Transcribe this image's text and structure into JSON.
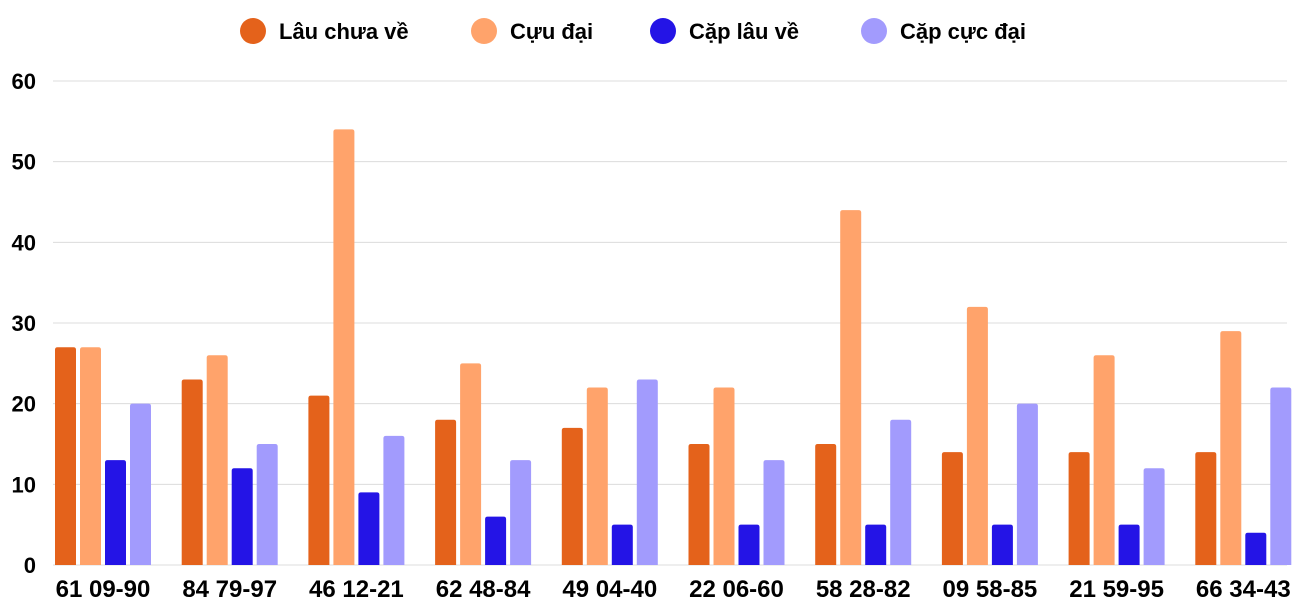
{
  "chart_data": {
    "type": "bar",
    "categories": [
      "61 09-90",
      "84 79-97",
      "46 12-21",
      "62 48-84",
      "49 04-40",
      "22 06-60",
      "58 28-82",
      "09 58-85",
      "21 59-95",
      "66 34-43"
    ],
    "series": [
      {
        "name": "Lâu chưa về",
        "color": "#e4621b",
        "values": [
          27,
          23,
          21,
          18,
          17,
          15,
          15,
          14,
          14,
          14
        ]
      },
      {
        "name": "Cựu đại",
        "color": "#ffa36b",
        "values": [
          27,
          26,
          54,
          25,
          22,
          22,
          44,
          32,
          26,
          29
        ]
      },
      {
        "name": "Cặp lâu về",
        "color": "#2414e6",
        "values": [
          13,
          12,
          9,
          6,
          5,
          5,
          5,
          5,
          5,
          4
        ]
      },
      {
        "name": "Cặp cực đại",
        "color": "#a29bfd",
        "values": [
          20,
          15,
          16,
          13,
          23,
          13,
          18,
          20,
          12,
          22
        ]
      }
    ],
    "ylim": [
      0,
      60
    ],
    "yticks": [
      0,
      10,
      20,
      30,
      40,
      50,
      60
    ],
    "legend_position": "top-center",
    "grid": true
  }
}
